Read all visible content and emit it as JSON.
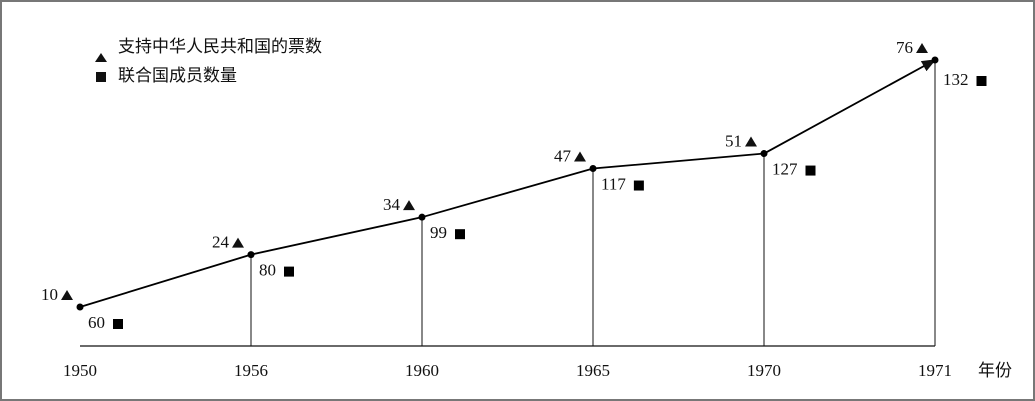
{
  "chart_data": {
    "type": "line",
    "categories": [
      "1950",
      "1956",
      "1960",
      "1965",
      "1970",
      "1971"
    ],
    "x_label": "年份",
    "series": [
      {
        "name": "支持中华人民共和国的票数",
        "color": "#000000",
        "values": [
          10,
          24,
          34,
          47,
          51,
          76
        ]
      },
      {
        "name": "联合国成员数量",
        "color": "#000000",
        "values": [
          60,
          80,
          99,
          117,
          127,
          132
        ]
      }
    ]
  }
}
